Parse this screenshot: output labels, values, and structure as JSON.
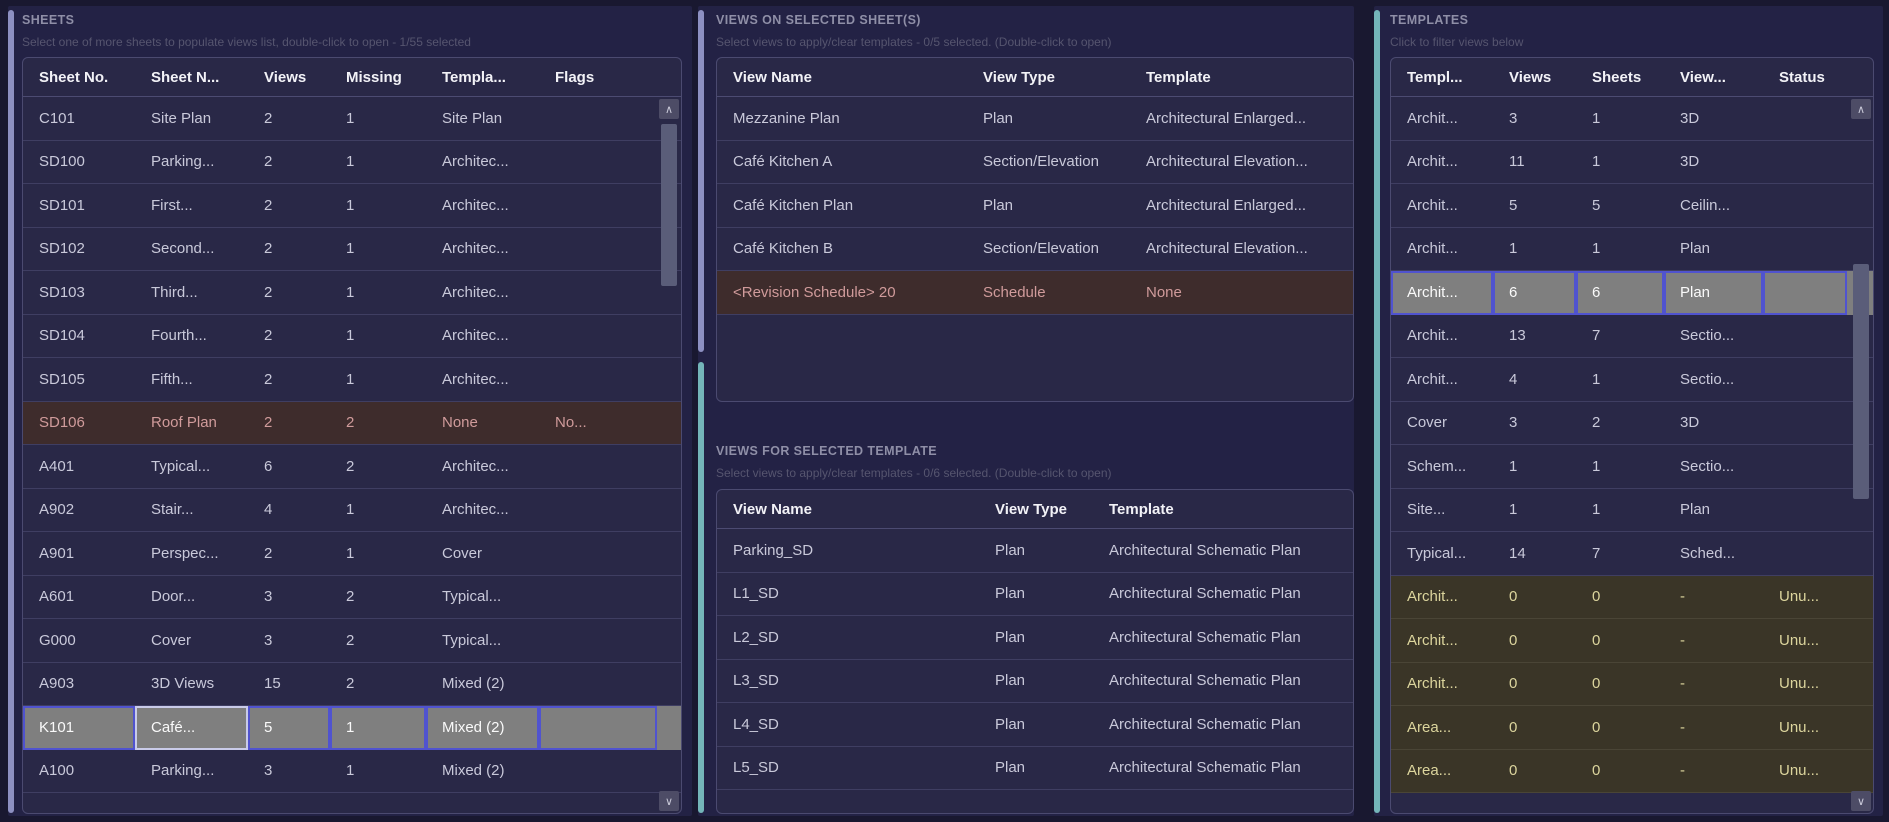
{
  "colors": {
    "accent_lavender": "#8d90c2",
    "accent_teal": "#74b5b9",
    "page_bg": "#191830",
    "panel_bg": "#232245",
    "table_bg": "#292847",
    "selected_row_bg": "#7f7f7f",
    "selected_border": "#5053cf",
    "selected_focus_border": "#c9cbe9",
    "alert_row_bg": "#3e2c2c",
    "alert_text": "#d09b9b",
    "unused_row_bg": "#3a3527",
    "unused_text": "#dcd59d"
  },
  "icons": {
    "scroll_up": "∧",
    "scroll_down": "∨"
  },
  "sheets": {
    "title": "SHEETS",
    "subtitle": "Select one of more sheets to populate views list, double-click to open - 1/55 selected",
    "table": {
      "columns": [
        "Sheet No.",
        "Sheet N...",
        "Views",
        "Missing",
        "Templa...",
        "Flags"
      ],
      "rows": [
        {
          "state": "normal",
          "cells": [
            "C101",
            "Site Plan",
            "2",
            "1",
            "Site Plan",
            ""
          ]
        },
        {
          "state": "normal",
          "cells": [
            "SD100",
            "Parking...",
            "2",
            "1",
            "Architec...",
            ""
          ]
        },
        {
          "state": "normal",
          "cells": [
            "SD101",
            "First...",
            "2",
            "1",
            "Architec...",
            ""
          ]
        },
        {
          "state": "normal",
          "cells": [
            "SD102",
            "Second...",
            "2",
            "1",
            "Architec...",
            ""
          ]
        },
        {
          "state": "normal",
          "cells": [
            "SD103",
            "Third...",
            "2",
            "1",
            "Architec...",
            ""
          ]
        },
        {
          "state": "normal",
          "cells": [
            "SD104",
            "Fourth...",
            "2",
            "1",
            "Architec...",
            ""
          ]
        },
        {
          "state": "normal",
          "cells": [
            "SD105",
            "Fifth...",
            "2",
            "1",
            "Architec...",
            ""
          ]
        },
        {
          "state": "alert",
          "cells": [
            "SD106",
            "Roof Plan",
            "2",
            "2",
            "None",
            "No..."
          ]
        },
        {
          "state": "normal",
          "cells": [
            "A401",
            "Typical...",
            "6",
            "2",
            "Architec...",
            ""
          ]
        },
        {
          "state": "normal",
          "cells": [
            "A902",
            "Stair...",
            "4",
            "1",
            "Architec...",
            ""
          ]
        },
        {
          "state": "normal",
          "cells": [
            "A901",
            "Perspec...",
            "2",
            "1",
            "Cover",
            ""
          ]
        },
        {
          "state": "normal",
          "cells": [
            "A601",
            "Door...",
            "3",
            "2",
            "Typical...",
            ""
          ]
        },
        {
          "state": "normal",
          "cells": [
            "G000",
            "Cover",
            "3",
            "2",
            "Typical...",
            ""
          ]
        },
        {
          "state": "normal",
          "cells": [
            "A903",
            "3D Views",
            "15",
            "2",
            "Mixed (2)",
            ""
          ]
        },
        {
          "state": "selected",
          "focus_cell": 1,
          "cells": [
            "K101",
            "Café...",
            "5",
            "1",
            "Mixed (2)",
            ""
          ]
        },
        {
          "state": "normal",
          "cells": [
            "A100",
            "Parking...",
            "3",
            "1",
            "Mixed (2)",
            ""
          ]
        }
      ]
    }
  },
  "views_on_sheets": {
    "title": "VIEWS ON SELECTED SHEET(S)",
    "subtitle": "Select views to apply/clear templates - 0/5 selected. (Double-click to open)",
    "table": {
      "columns": [
        "View Name",
        "View Type",
        "Template"
      ],
      "rows": [
        {
          "state": "normal",
          "cells": [
            "Mezzanine Plan",
            "Plan",
            "Architectural Enlarged..."
          ]
        },
        {
          "state": "normal",
          "cells": [
            "Café Kitchen A",
            "Section/Elevation",
            "Architectural Elevation..."
          ]
        },
        {
          "state": "normal",
          "cells": [
            "Café Kitchen Plan",
            "Plan",
            "Architectural Enlarged..."
          ]
        },
        {
          "state": "normal",
          "cells": [
            "Café Kitchen B",
            "Section/Elevation",
            "Architectural Elevation..."
          ]
        },
        {
          "state": "alert",
          "cells": [
            "<Revision Schedule> 20",
            "Schedule",
            "None"
          ]
        }
      ]
    }
  },
  "views_for_template": {
    "title": "VIEWS FOR SELECTED TEMPLATE",
    "subtitle": "Select views to apply/clear templates - 0/6 selected. (Double-click to open)",
    "table": {
      "columns": [
        "View Name",
        "View Type",
        "Template"
      ],
      "rows": [
        {
          "state": "normal",
          "cells": [
            "Parking_SD",
            "Plan",
            "Architectural Schematic Plan"
          ]
        },
        {
          "state": "normal",
          "cells": [
            "L1_SD",
            "Plan",
            "Architectural Schematic Plan"
          ]
        },
        {
          "state": "normal",
          "cells": [
            "L2_SD",
            "Plan",
            "Architectural Schematic Plan"
          ]
        },
        {
          "state": "normal",
          "cells": [
            "L3_SD",
            "Plan",
            "Architectural Schematic Plan"
          ]
        },
        {
          "state": "normal",
          "cells": [
            "L4_SD",
            "Plan",
            "Architectural Schematic Plan"
          ]
        },
        {
          "state": "normal",
          "cells": [
            "L5_SD",
            "Plan",
            "Architectural Schematic Plan"
          ]
        }
      ]
    }
  },
  "templates": {
    "title": "TEMPLATES",
    "subtitle": "Click to filter views below",
    "table": {
      "columns": [
        "Templ...",
        "Views",
        "Sheets",
        "View...",
        "Status"
      ],
      "rows": [
        {
          "state": "normal",
          "cells": [
            "Archit...",
            "3",
            "1",
            "3D",
            ""
          ]
        },
        {
          "state": "normal",
          "cells": [
            "Archit...",
            "11",
            "1",
            "3D",
            ""
          ]
        },
        {
          "state": "normal",
          "cells": [
            "Archit...",
            "5",
            "5",
            "Ceilin...",
            ""
          ]
        },
        {
          "state": "normal",
          "cells": [
            "Archit...",
            "1",
            "1",
            "Plan",
            ""
          ]
        },
        {
          "state": "selected",
          "cells": [
            "Archit...",
            "6",
            "6",
            "Plan",
            ""
          ]
        },
        {
          "state": "normal",
          "cells": [
            "Archit...",
            "13",
            "7",
            "Sectio...",
            ""
          ]
        },
        {
          "state": "normal",
          "cells": [
            "Archit...",
            "4",
            "1",
            "Sectio...",
            ""
          ]
        },
        {
          "state": "normal",
          "cells": [
            "Cover",
            "3",
            "2",
            "3D",
            ""
          ]
        },
        {
          "state": "normal",
          "cells": [
            "Schem...",
            "1",
            "1",
            "Sectio...",
            ""
          ]
        },
        {
          "state": "normal",
          "cells": [
            "Site...",
            "1",
            "1",
            "Plan",
            ""
          ]
        },
        {
          "state": "normal",
          "cells": [
            "Typical...",
            "14",
            "7",
            "Sched...",
            ""
          ]
        },
        {
          "state": "unused",
          "cells": [
            "Archit...",
            "0",
            "0",
            "-",
            "Unu..."
          ]
        },
        {
          "state": "unused",
          "cells": [
            "Archit...",
            "0",
            "0",
            "-",
            "Unu..."
          ]
        },
        {
          "state": "unused",
          "cells": [
            "Archit...",
            "0",
            "0",
            "-",
            "Unu..."
          ]
        },
        {
          "state": "unused",
          "cells": [
            "Area...",
            "0",
            "0",
            "-",
            "Unu..."
          ]
        },
        {
          "state": "unused",
          "cells": [
            "Area...",
            "0",
            "0",
            "-",
            "Unu..."
          ]
        }
      ]
    }
  }
}
